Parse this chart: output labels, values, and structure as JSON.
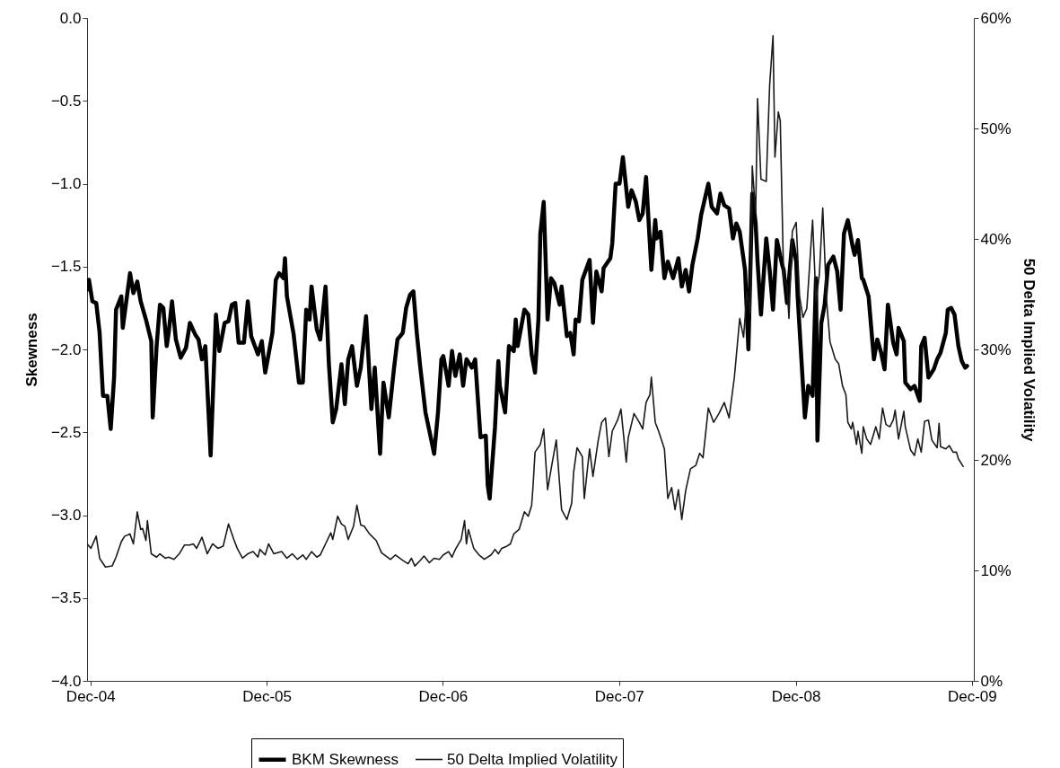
{
  "chart_data": {
    "type": "line",
    "ylabel": "Skewness",
    "y2label": "50 Delta Implied Volatility",
    "xlim": [
      "2004-11-24",
      "2009-12-05"
    ],
    "xticks": [
      {
        "value": "2004-12-01",
        "label": "Dec-04"
      },
      {
        "value": "2005-12-01",
        "label": "Dec-05"
      },
      {
        "value": "2006-12-01",
        "label": "Dec-06"
      },
      {
        "value": "2007-12-01",
        "label": "Dec-07"
      },
      {
        "value": "2008-12-01",
        "label": "Dec-08"
      },
      {
        "value": "2009-12-01",
        "label": "Dec-09"
      }
    ],
    "ylim": [
      -4,
      0
    ],
    "yticks": [
      {
        "value": -4,
        "label": "−4.0"
      },
      {
        "value": -3.5,
        "label": "−3.5"
      },
      {
        "value": -3,
        "label": "−3.0"
      },
      {
        "value": -2.5,
        "label": "−2.5"
      },
      {
        "value": -2,
        "label": "−2.0"
      },
      {
        "value": -1.5,
        "label": "−1.5"
      },
      {
        "value": -1,
        "label": "−1.0"
      },
      {
        "value": -0.5,
        "label": "−0.5"
      },
      {
        "value": 0,
        "label": "0.0"
      }
    ],
    "y2lim": [
      0,
      60
    ],
    "y2ticks": [
      {
        "value": 0,
        "label": "0%"
      },
      {
        "value": 10,
        "label": "10%"
      },
      {
        "value": 20,
        "label": "20%"
      },
      {
        "value": 30,
        "label": "30%"
      },
      {
        "value": 40,
        "label": "40%"
      },
      {
        "value": 50,
        "label": "50%"
      },
      {
        "value": 60,
        "label": "60%"
      }
    ],
    "grid": false,
    "legend": "bottom",
    "line_style": "solid",
    "series": [
      {
        "name": "BKM Skewness",
        "color": "#000000",
        "x": [
          "2004-11-24",
          "2004-11-28",
          "2004-12-05",
          "2004-12-13",
          "2004-12-20",
          "2004-12-27",
          "2005-01-05",
          "2005-01-12",
          "2005-01-19",
          "2005-01-23",
          "2005-02-03",
          "2005-02-06",
          "2005-02-21",
          "2005-02-28",
          "2005-03-08",
          "2005-03-15",
          "2005-03-26",
          "2005-04-06",
          "2005-04-09",
          "2005-04-17",
          "2005-04-24",
          "2005-05-01",
          "2005-05-08",
          "2005-05-12",
          "2005-05-19",
          "2005-05-27",
          "2005-06-06",
          "2005-06-17",
          "2005-06-25",
          "2005-07-06",
          "2005-07-13",
          "2005-07-20",
          "2005-07-27",
          "2005-08-07",
          "2005-08-18",
          "2005-08-25",
          "2005-09-05",
          "2005-09-13",
          "2005-09-20",
          "2005-09-27",
          "2005-10-04",
          "2005-10-15",
          "2005-10-23",
          "2005-10-30",
          "2005-11-13",
          "2005-11-21",
          "2005-11-28",
          "2005-12-05",
          "2005-12-13",
          "2005-12-20",
          "2005-12-27",
          "2006-01-05",
          "2006-01-08",
          "2006-01-12",
          "2006-01-26",
          "2006-02-06",
          "2006-02-14",
          "2006-02-21",
          "2006-02-28",
          "2006-03-04",
          "2006-03-15",
          "2006-03-22",
          "2006-04-02",
          "2006-04-09",
          "2006-04-17",
          "2006-04-24",
          "2006-05-05",
          "2006-05-12",
          "2006-05-19",
          "2006-05-27",
          "2006-06-06",
          "2006-06-14",
          "2006-06-25",
          "2006-07-06",
          "2006-07-13",
          "2006-07-24",
          "2006-07-31",
          "2006-08-11",
          "2006-08-22",
          "2006-08-29",
          "2006-09-09",
          "2006-09-16",
          "2006-09-24",
          "2006-10-01",
          "2006-10-08",
          "2006-10-15",
          "2006-10-26",
          "2006-11-03",
          "2006-11-13",
          "2006-11-21",
          "2006-11-28",
          "2006-12-02",
          "2006-12-13",
          "2006-12-20",
          "2006-12-27",
          "2007-01-05",
          "2007-01-12",
          "2007-01-19",
          "2007-01-30",
          "2007-02-06",
          "2007-02-17",
          "2007-02-28",
          "2007-03-04",
          "2007-03-08",
          "2007-03-19",
          "2007-03-26",
          "2007-03-29",
          "2007-04-09",
          "2007-04-17",
          "2007-04-27",
          "2007-05-01",
          "2007-05-05",
          "2007-05-19",
          "2007-05-27",
          "2007-06-03",
          "2007-06-10",
          "2007-06-17",
          "2007-06-21",
          "2007-06-28",
          "2007-07-06",
          "2007-07-13",
          "2007-07-20",
          "2007-07-31",
          "2007-08-04",
          "2007-08-15",
          "2007-08-22",
          "2007-08-29",
          "2007-09-02",
          "2007-09-09",
          "2007-09-16",
          "2007-10-01",
          "2007-10-08",
          "2007-10-15",
          "2007-10-26",
          "2007-10-30",
          "2007-11-13",
          "2007-11-17",
          "2007-11-24",
          "2007-12-02",
          "2007-12-09",
          "2007-12-20",
          "2007-12-27",
          "2008-01-05",
          "2008-01-12",
          "2008-01-19",
          "2008-01-26",
          "2008-02-06",
          "2008-02-14",
          "2008-02-17",
          "2008-02-25",
          "2008-03-04",
          "2008-03-11",
          "2008-03-22",
          "2008-04-02",
          "2008-04-09",
          "2008-04-17",
          "2008-04-24",
          "2008-05-01",
          "2008-05-12",
          "2008-05-19",
          "2008-06-03",
          "2008-06-10",
          "2008-06-21",
          "2008-06-28",
          "2008-07-06",
          "2008-07-16",
          "2008-07-24",
          "2008-07-31",
          "2008-08-07",
          "2008-08-18",
          "2008-08-25",
          "2008-09-02",
          "2008-09-09",
          "2008-09-13",
          "2008-09-20",
          "2008-10-01",
          "2008-10-08",
          "2008-10-15",
          "2008-10-23",
          "2008-11-03",
          "2008-11-06",
          "2008-11-13",
          "2008-11-24",
          "2008-12-02",
          "2008-12-05",
          "2008-12-20",
          "2008-12-27",
          "2009-01-05",
          "2009-01-12",
          "2009-01-15",
          "2009-01-23",
          "2009-01-30",
          "2009-02-06",
          "2009-02-17",
          "2009-02-25",
          "2009-03-04",
          "2009-03-11",
          "2009-03-19",
          "2009-03-29",
          "2009-04-02",
          "2009-04-09",
          "2009-04-17",
          "2009-04-20",
          "2009-05-01",
          "2009-05-05",
          "2009-05-12",
          "2009-05-19",
          "2009-05-27",
          "2009-06-03",
          "2009-06-10",
          "2009-06-21",
          "2009-06-28",
          "2009-07-02",
          "2009-07-13",
          "2009-07-16",
          "2009-07-27",
          "2009-08-04",
          "2009-08-15",
          "2009-08-18",
          "2009-08-25",
          "2009-09-02",
          "2009-09-13",
          "2009-09-20",
          "2009-09-27",
          "2009-10-08",
          "2009-10-12",
          "2009-10-19",
          "2009-10-26",
          "2009-11-03",
          "2009-11-10",
          "2009-11-17",
          "2009-11-21"
        ],
        "values": [
          -1.64,
          -1.58,
          -1.71,
          -1.72,
          -1.9,
          -2.28,
          -2.28,
          -2.48,
          -2.17,
          -1.76,
          -1.68,
          -1.87,
          -1.54,
          -1.66,
          -1.59,
          -1.71,
          -1.82,
          -1.95,
          -2.41,
          -1.98,
          -1.73,
          -1.75,
          -1.98,
          -1.9,
          -1.71,
          -1.94,
          -2.05,
          -1.99,
          -1.84,
          -1.91,
          -1.94,
          -2.06,
          -1.98,
          -2.64,
          -1.79,
          -2.01,
          -1.84,
          -1.83,
          -1.73,
          -1.72,
          -1.96,
          -1.96,
          -1.71,
          -1.92,
          -2.03,
          -1.95,
          -2.14,
          -2.03,
          -1.9,
          -1.58,
          -1.54,
          -1.57,
          -1.45,
          -1.68,
          -1.91,
          -2.2,
          -2.2,
          -1.76,
          -1.82,
          -1.62,
          -1.88,
          -1.94,
          -1.62,
          -2.09,
          -2.44,
          -2.36,
          -2.09,
          -2.33,
          -2.06,
          -1.98,
          -2.22,
          -2.11,
          -1.8,
          -2.36,
          -2.11,
          -2.63,
          -2.2,
          -2.41,
          -2.11,
          -1.94,
          -1.9,
          -1.75,
          -1.67,
          -1.65,
          -1.9,
          -2.1,
          -2.38,
          -2.49,
          -2.63,
          -2.38,
          -2.06,
          -2.04,
          -2.22,
          -2.01,
          -2.16,
          -2.03,
          -2.22,
          -2.06,
          -2.11,
          -2.06,
          -2.53,
          -2.52,
          -2.82,
          -2.9,
          -2.47,
          -2.07,
          -2.22,
          -2.38,
          -1.98,
          -2.01,
          -1.82,
          -1.98,
          -1.76,
          -1.79,
          -2.03,
          -2.14,
          -1.82,
          -1.3,
          -1.11,
          -1.82,
          -1.57,
          -1.6,
          -1.73,
          -1.62,
          -1.92,
          -1.9,
          -2.03,
          -1.82,
          -1.83,
          -1.58,
          -1.46,
          -1.84,
          -1.53,
          -1.65,
          -1.51,
          -1.45,
          -1.36,
          -1.0,
          -1.0,
          -0.84,
          -1.14,
          -1.04,
          -1.11,
          -1.22,
          -1.18,
          -0.96,
          -1.52,
          -1.22,
          -1.33,
          -1.29,
          -1.57,
          -1.47,
          -1.57,
          -1.45,
          -1.62,
          -1.52,
          -1.65,
          -1.49,
          -1.33,
          -1.19,
          -1.0,
          -1.14,
          -1.18,
          -1.06,
          -1.13,
          -1.15,
          -1.33,
          -1.24,
          -1.29,
          -1.52,
          -2.0,
          -1.06,
          -1.24,
          -1.47,
          -1.79,
          -1.33,
          -1.52,
          -1.76,
          -1.34,
          -1.49,
          -1.52,
          -1.72,
          -1.34,
          -1.47,
          -1.68,
          -2.41,
          -2.22,
          -2.28,
          -1.57,
          -2.55,
          -1.84,
          -1.73,
          -1.49,
          -1.44,
          -1.53,
          -1.76,
          -1.3,
          -1.22,
          -1.38,
          -1.43,
          -1.34,
          -1.57,
          -1.58,
          -1.68,
          -1.82,
          -2.06,
          -1.94,
          -2.02,
          -2.12,
          -1.73,
          -1.96,
          -2.03,
          -1.87,
          -1.95,
          -2.2,
          -2.24,
          -2.22,
          -2.31,
          -1.98,
          -1.93,
          -2.17,
          -2.12,
          -2.06,
          -2.02,
          -1.9,
          -1.76,
          -1.75,
          -1.79,
          -1.98,
          -2.07,
          -2.11,
          -2.1
        ]
      },
      {
        "name": "50 Delta Implied Volatility",
        "color": "#1a1a1a",
        "axis": "y2",
        "x": [
          "2004-11-24",
          "2004-12-02",
          "2004-12-13",
          "2004-12-20",
          "2005-01-01",
          "2005-01-15",
          "2005-01-23",
          "2005-02-03",
          "2005-02-10",
          "2005-02-21",
          "2005-02-28",
          "2005-03-08",
          "2005-03-15",
          "2005-03-19",
          "2005-03-26",
          "2005-03-29",
          "2005-04-06",
          "2005-04-17",
          "2005-04-24",
          "2005-05-05",
          "2005-05-12",
          "2005-05-23",
          "2005-06-03",
          "2005-06-14",
          "2005-06-25",
          "2005-07-02",
          "2005-07-09",
          "2005-07-20",
          "2005-07-31",
          "2005-08-11",
          "2005-08-22",
          "2005-09-02",
          "2005-09-13",
          "2005-09-24",
          "2005-10-01",
          "2005-10-12",
          "2005-10-23",
          "2005-11-03",
          "2005-11-13",
          "2005-11-17",
          "2005-11-28",
          "2005-12-05",
          "2005-12-16",
          "2006-01-01",
          "2006-01-12",
          "2006-01-23",
          "2006-02-03",
          "2006-02-14",
          "2006-02-21",
          "2006-03-04",
          "2006-03-15",
          "2006-03-22",
          "2006-04-02",
          "2006-04-13",
          "2006-04-17",
          "2006-04-27",
          "2006-05-05",
          "2006-05-12",
          "2006-05-19",
          "2006-05-30",
          "2006-06-06",
          "2006-06-14",
          "2006-06-21",
          "2006-07-02",
          "2006-07-16",
          "2006-07-27",
          "2006-08-11",
          "2006-08-15",
          "2006-08-25",
          "2006-09-09",
          "2006-09-20",
          "2006-09-27",
          "2006-10-04",
          "2006-10-15",
          "2006-10-23",
          "2006-11-03",
          "2006-11-13",
          "2006-11-24",
          "2006-12-02",
          "2006-12-13",
          "2006-12-20",
          "2006-12-27",
          "2007-01-08",
          "2007-01-15",
          "2007-01-19",
          "2007-01-23",
          "2007-02-03",
          "2007-02-14",
          "2007-02-25",
          "2007-03-11",
          "2007-03-19",
          "2007-03-26",
          "2007-04-02",
          "2007-04-13",
          "2007-04-20",
          "2007-04-27",
          "2007-05-08",
          "2007-05-19",
          "2007-05-27",
          "2007-06-03",
          "2007-06-06",
          "2007-06-10",
          "2007-06-21",
          "2007-06-28",
          "2007-07-06",
          "2007-07-13",
          "2007-07-24",
          "2007-08-04",
          "2007-08-15",
          "2007-08-25",
          "2007-08-29",
          "2007-09-05",
          "2007-09-16",
          "2007-09-20",
          "2007-10-01",
          "2007-10-08",
          "2007-10-19",
          "2007-10-26",
          "2007-11-03",
          "2007-11-10",
          "2007-11-17",
          "2007-11-28",
          "2007-12-05",
          "2007-12-16",
          "2007-12-20",
          "2008-01-01",
          "2008-01-12",
          "2008-01-19",
          "2008-01-26",
          "2008-02-03",
          "2008-02-06",
          "2008-02-14",
          "2008-02-21",
          "2008-03-04",
          "2008-03-11",
          "2008-03-19",
          "2008-03-26",
          "2008-04-02",
          "2008-04-09",
          "2008-04-17",
          "2008-04-27",
          "2008-05-08",
          "2008-05-16",
          "2008-05-23",
          "2008-06-03",
          "2008-06-14",
          "2008-06-25",
          "2008-07-06",
          "2008-07-16",
          "2008-07-27",
          "2008-08-07",
          "2008-08-15",
          "2008-08-22",
          "2008-08-29",
          "2008-09-02",
          "2008-09-09",
          "2008-09-13",
          "2008-09-20",
          "2008-10-01",
          "2008-10-08",
          "2008-10-15",
          "2008-10-19",
          "2008-10-26",
          "2008-10-30",
          "2008-11-06",
          "2008-11-13",
          "2008-11-17",
          "2008-11-24",
          "2008-12-02",
          "2008-12-09",
          "2008-12-16",
          "2008-12-24",
          "2009-01-05",
          "2009-01-12",
          "2009-01-19",
          "2009-01-26",
          "2009-02-03",
          "2009-02-10",
          "2009-02-21",
          "2009-02-28",
          "2009-03-08",
          "2009-03-15",
          "2009-03-19",
          "2009-03-26",
          "2009-03-29",
          "2009-04-06",
          "2009-04-09",
          "2009-04-17",
          "2009-04-20",
          "2009-04-27",
          "2009-05-05",
          "2009-05-16",
          "2009-05-23",
          "2009-05-30",
          "2009-06-06",
          "2009-06-14",
          "2009-06-21",
          "2009-06-25",
          "2009-07-02",
          "2009-07-13",
          "2009-07-16",
          "2009-07-27",
          "2009-08-04",
          "2009-08-11",
          "2009-08-18",
          "2009-08-25",
          "2009-09-02",
          "2009-09-09",
          "2009-09-20",
          "2009-09-24",
          "2009-09-27",
          "2009-10-08",
          "2009-10-15",
          "2009-10-23",
          "2009-10-30",
          "2009-11-03",
          "2009-11-13"
        ],
        "values": [
          12.4,
          12.0,
          13.1,
          11.1,
          10.3,
          10.4,
          11.2,
          12.6,
          13.1,
          13.3,
          12.4,
          15.3,
          13.7,
          13.8,
          12.7,
          14.5,
          11.5,
          11.2,
          11.5,
          11.1,
          11.2,
          11.0,
          11.5,
          12.3,
          12.3,
          12.4,
          12.0,
          13.0,
          11.5,
          12.4,
          12.0,
          12.2,
          14.2,
          12.8,
          12.0,
          11.1,
          11.5,
          11.7,
          11.2,
          11.9,
          11.4,
          12.4,
          11.5,
          11.7,
          11.1,
          11.5,
          11.0,
          11.4,
          11.0,
          11.7,
          11.2,
          11.4,
          12.4,
          13.4,
          12.8,
          14.9,
          14.2,
          14.0,
          12.8,
          14.0,
          15.9,
          14.1,
          14.0,
          13.3,
          12.7,
          11.6,
          11.1,
          11.0,
          11.4,
          10.9,
          10.6,
          11.1,
          10.4,
          10.9,
          11.3,
          10.7,
          11.1,
          11.0,
          11.4,
          11.7,
          11.2,
          11.9,
          12.8,
          14.5,
          12.4,
          13.7,
          12.0,
          11.4,
          11.0,
          11.4,
          11.9,
          11.5,
          12.0,
          12.2,
          12.4,
          13.3,
          13.7,
          15.3,
          14.9,
          15.9,
          17.7,
          20.7,
          21.4,
          22.8,
          17.3,
          19.1,
          21.8,
          15.5,
          14.6,
          16.1,
          18.9,
          21.1,
          20.3,
          16.5,
          21.0,
          18.5,
          21.8,
          23.4,
          23.8,
          20.3,
          22.6,
          23.6,
          24.6,
          19.8,
          22.0,
          24.2,
          23.4,
          22.8,
          25.2,
          25.9,
          27.5,
          23.4,
          22.6,
          21.0,
          16.5,
          17.5,
          15.5,
          17.3,
          14.6,
          17.2,
          19.2,
          19.5,
          20.6,
          20.2,
          24.7,
          23.4,
          24.2,
          25.2,
          23.8,
          27.5,
          32.8,
          31.1,
          35.2,
          33.2,
          46.6,
          42.3,
          52.7,
          45.4,
          45.2,
          53.9,
          58.4,
          47.4,
          51.5,
          50.7,
          36.4,
          35.8,
          32.8,
          40.7,
          41.5,
          34.8,
          32.9,
          33.7,
          41.7,
          34.4,
          36.8,
          42.8,
          34.4,
          30.7,
          29.1,
          28.7,
          26.7,
          25.9,
          23.4,
          22.8,
          23.4,
          21.4,
          22.6,
          20.6,
          23.0,
          21.9,
          21.4,
          23.0,
          21.9,
          24.7,
          23.2,
          23.0,
          23.6,
          24.5,
          21.9,
          24.4,
          23.0,
          20.9,
          20.4,
          21.9,
          20.7,
          23.5,
          23.6,
          21.8,
          21.1,
          23.3,
          21.2,
          21.0,
          21.3,
          20.7,
          20.7,
          20.1,
          19.4
        ]
      }
    ]
  }
}
